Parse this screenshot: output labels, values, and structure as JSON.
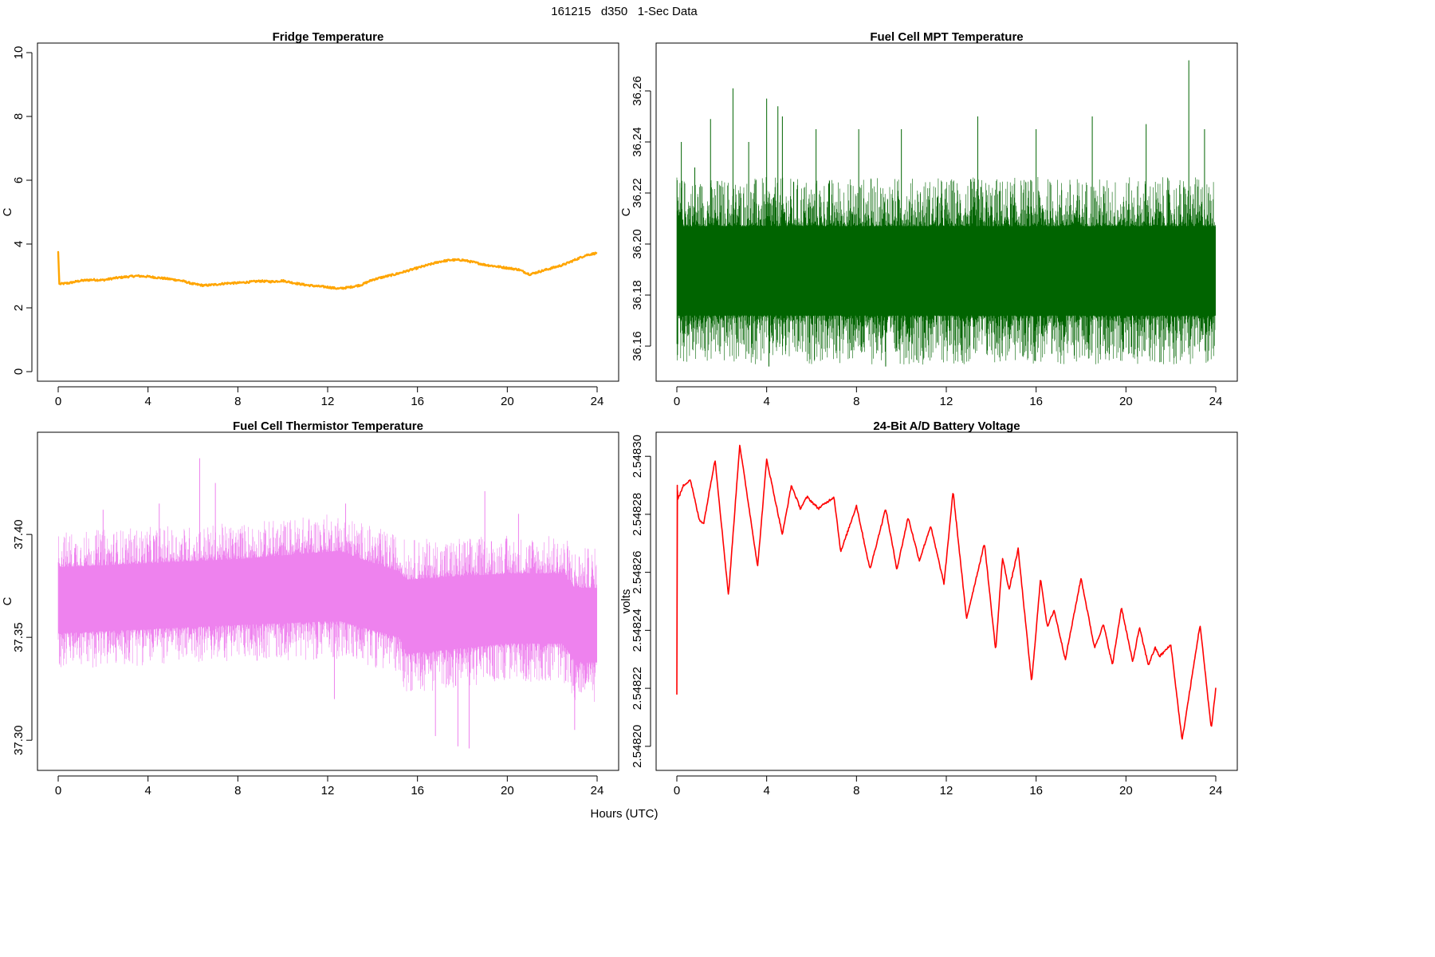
{
  "figure": {
    "main_title": "161215   d350   1-Sec Data",
    "x_label": "Hours (UTC)"
  },
  "chart_data": [
    {
      "type": "line",
      "title": "Fridge Temperature",
      "ylabel": "C",
      "xlabel": "",
      "xlim": [
        0,
        24
      ],
      "ylim": [
        0,
        10
      ],
      "xticks": [
        0,
        4,
        8,
        12,
        16,
        20,
        24
      ],
      "yticks": [
        0,
        2,
        4,
        6,
        8,
        10
      ],
      "ytick_labels": [
        "0",
        "2",
        "4",
        "6",
        "8",
        "10"
      ],
      "color": "#ffa500",
      "noise": 0.03,
      "series": [
        {
          "x": [
            0,
            0.05,
            0.1,
            0.5,
            1,
            1.5,
            2,
            2.5,
            3,
            3.5,
            4,
            4.5,
            5,
            5.5,
            6,
            6.5,
            7,
            7.5,
            8,
            8.5,
            9,
            9.5,
            10,
            10.5,
            11,
            11.5,
            12,
            12.5,
            13,
            13.5,
            14,
            14.5,
            15,
            15.5,
            16,
            16.5,
            17,
            17.5,
            18,
            18.5,
            19,
            19.5,
            20,
            20.5,
            21,
            21.5,
            22,
            22.5,
            23,
            23.5,
            24
          ],
          "y": [
            3.75,
            2.75,
            2.75,
            2.78,
            2.85,
            2.88,
            2.87,
            2.93,
            2.97,
            3.0,
            2.98,
            2.94,
            2.9,
            2.85,
            2.75,
            2.7,
            2.73,
            2.77,
            2.78,
            2.81,
            2.84,
            2.82,
            2.85,
            2.78,
            2.72,
            2.68,
            2.65,
            2.6,
            2.65,
            2.72,
            2.88,
            2.97,
            3.05,
            3.15,
            3.25,
            3.35,
            3.45,
            3.5,
            3.5,
            3.43,
            3.35,
            3.3,
            3.25,
            3.2,
            3.05,
            3.15,
            3.25,
            3.35,
            3.5,
            3.65,
            3.72
          ]
        }
      ]
    },
    {
      "type": "line",
      "title": "Fuel Cell MPT Temperature",
      "ylabel": "C",
      "xlabel": "",
      "xlim": [
        0,
        24
      ],
      "ylim": [
        36.15,
        36.275
      ],
      "xticks": [
        0,
        4,
        8,
        12,
        16,
        20,
        24
      ],
      "yticks": [
        36.16,
        36.18,
        36.2,
        36.22,
        36.24,
        36.26
      ],
      "ytick_labels": [
        "36.16",
        "36.18",
        "36.20",
        "36.22",
        "36.24",
        "36.26"
      ],
      "color": "#006400",
      "noise": 0,
      "series": [
        {
          "x": [
            0,
            24
          ],
          "y": [
            36.19,
            36.19
          ],
          "band_low": [
            36.172,
            36.172
          ],
          "band_high": [
            36.207,
            36.207
          ]
        }
      ],
      "spikes": {
        "x": [
          0.2,
          0.8,
          1.5,
          2.5,
          3.2,
          4.0,
          4.5,
          4.7,
          6.2,
          8.1,
          10.0,
          13.4,
          16.0,
          18.5,
          20.9,
          22.8,
          23.5
        ],
        "y": [
          36.24,
          36.23,
          36.249,
          36.261,
          36.24,
          36.257,
          36.254,
          36.25,
          36.245,
          36.245,
          36.245,
          36.25,
          36.245,
          36.25,
          36.247,
          36.272,
          36.245
        ]
      },
      "dips": {
        "x": [
          3.2,
          4.1,
          9.3,
          9.8,
          14.2,
          16.7,
          22.5
        ],
        "y": [
          36.157,
          36.152,
          36.152,
          36.158,
          36.159,
          36.157,
          36.157
        ]
      }
    },
    {
      "type": "line",
      "title": "Fuel Cell Thermistor Temperature",
      "ylabel": "C",
      "xlabel": "",
      "xlim": [
        0,
        24
      ],
      "ylim": [
        37.29,
        37.445
      ],
      "xticks": [
        0,
        4,
        8,
        12,
        16,
        20,
        24
      ],
      "yticks": [
        37.3,
        37.35,
        37.4
      ],
      "ytick_labels": [
        "37.30",
        "37.35",
        "37.40"
      ],
      "color": "#ee82ee",
      "noise": 0,
      "series": [
        {
          "x": [
            0,
            4,
            8,
            12.5,
            13.5,
            15.2,
            15.5,
            20,
            22.5,
            23,
            24
          ],
          "y": [
            37.368,
            37.37,
            37.372,
            37.375,
            37.372,
            37.366,
            37.36,
            37.364,
            37.364,
            37.356,
            37.356
          ],
          "band_low": [
            37.352,
            37.354,
            37.356,
            37.358,
            37.355,
            37.35,
            37.342,
            37.347,
            37.347,
            37.338,
            37.338
          ],
          "band_high": [
            37.384,
            37.386,
            37.388,
            37.392,
            37.388,
            37.382,
            37.378,
            37.381,
            37.381,
            37.374,
            37.374
          ]
        }
      ],
      "spikes": {
        "x": [
          2.0,
          4.5,
          6.3,
          7.0,
          12.8,
          19.0,
          20.5
        ],
        "y": [
          37.412,
          37.415,
          37.437,
          37.425,
          37.415,
          37.421,
          37.41
        ]
      },
      "dips": {
        "x": [
          12.3,
          16.8,
          17.8,
          18.3,
          23.0
        ],
        "y": [
          37.32,
          37.302,
          37.297,
          37.296,
          37.305
        ]
      }
    },
    {
      "type": "line",
      "title": "24-Bit A/D Battery Voltage",
      "ylabel": "volts",
      "xlabel": "",
      "xlim": [
        0,
        24
      ],
      "ylim": [
        2.548195,
        2.548305
      ],
      "xticks": [
        0,
        4,
        8,
        12,
        16,
        20,
        24
      ],
      "yticks": [
        2.5482,
        2.54822,
        2.54824,
        2.54826,
        2.54828,
        2.5483
      ],
      "ytick_labels": [
        "2.54820",
        "2.54822",
        "2.54824",
        "2.54826",
        "2.54828",
        "2.54830"
      ],
      "color": "#ff0000",
      "noise": 4e-07,
      "series": [
        {
          "x": [
            0,
            0.02,
            0.04,
            0.3,
            0.6,
            1.0,
            1.2,
            1.7,
            2.3,
            2.8,
            3.6,
            4.0,
            4.7,
            5.1,
            5.5,
            5.8,
            6.3,
            7.0,
            7.3,
            8.0,
            8.6,
            9.3,
            9.8,
            10.3,
            10.8,
            11.3,
            11.9,
            12.3,
            12.9,
            13.7,
            14.2,
            14.5,
            14.8,
            15.2,
            15.8,
            16.2,
            16.5,
            16.8,
            17.3,
            18.0,
            18.6,
            19.0,
            19.4,
            19.8,
            20.3,
            20.6,
            21.0,
            21.3,
            21.5,
            22.0,
            22.5,
            23.3,
            23.8,
            24.0
          ],
          "y": [
            2.548218,
            2.54829,
            2.548285,
            2.54829,
            2.548292,
            2.548278,
            2.548277,
            2.548299,
            2.548252,
            2.548304,
            2.548262,
            2.548299,
            2.548273,
            2.54829,
            2.548282,
            2.548286,
            2.548282,
            2.548286,
            2.548267,
            2.548283,
            2.548261,
            2.548282,
            2.548261,
            2.548279,
            2.548264,
            2.548276,
            2.548256,
            2.548288,
            2.548244,
            2.54827,
            2.548233,
            2.548265,
            2.548254,
            2.548268,
            2.548222,
            2.548258,
            2.548241,
            2.548247,
            2.54823,
            2.548258,
            2.548234,
            2.548242,
            2.548228,
            2.548248,
            2.548229,
            2.548241,
            2.548228,
            2.548234,
            2.548231,
            2.548235,
            2.548202,
            2.548242,
            2.548206,
            2.54822
          ]
        }
      ]
    }
  ]
}
